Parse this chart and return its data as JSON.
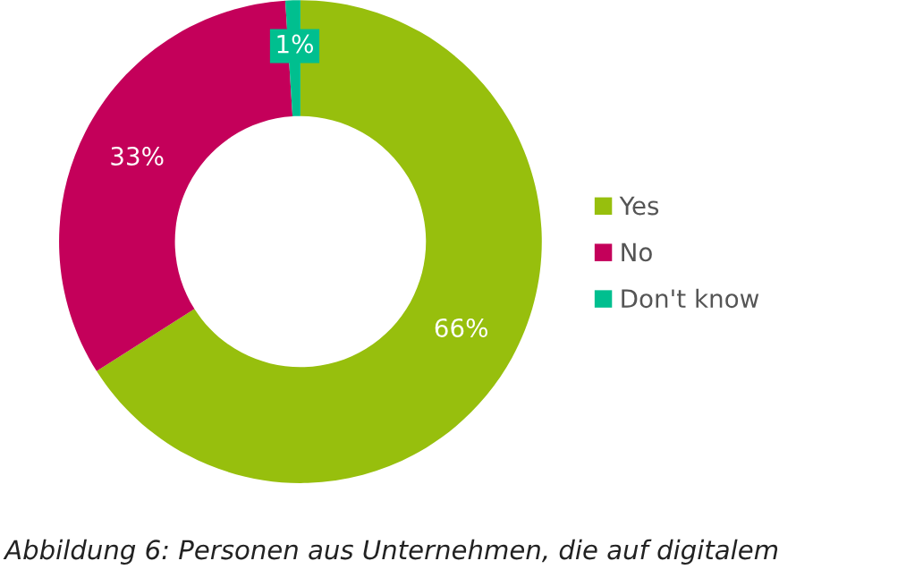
{
  "chart_data": {
    "type": "donut",
    "categories": [
      "Yes",
      "No",
      "Don't know"
    ],
    "values": [
      66,
      33,
      1
    ],
    "colors": [
      "#97bf0d",
      "#c4005a",
      "#00bf8f"
    ],
    "value_labels": [
      "66%",
      "33%",
      "1%"
    ],
    "legend": "right",
    "annotations": [
      "Abbildung 6: Personen aus Unternehmen, die auf digitalem"
    ]
  }
}
